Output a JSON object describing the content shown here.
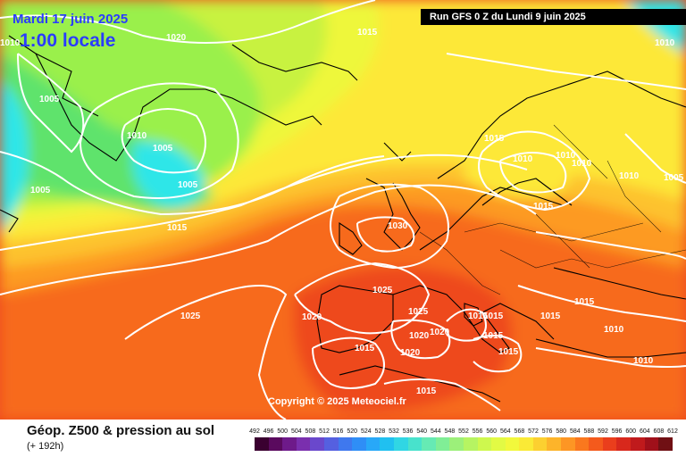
{
  "header": {
    "date": "Mardi 17 juin 2025",
    "local_time": "1:00 locale",
    "run": "Run GFS 0 Z du Lundi 9 juin 2025"
  },
  "footer": {
    "title": "Géop. Z500 & pression au sol",
    "lead": "(+ 192h)",
    "copyright": "Copyright © 2025 Meteociel.fr"
  },
  "isobars": [
    {
      "value": "1020"
    },
    {
      "value": "1015"
    },
    {
      "value": "1010"
    },
    {
      "value": "1010"
    },
    {
      "value": "1005"
    },
    {
      "value": "1010"
    },
    {
      "value": "1005"
    },
    {
      "value": "1005"
    },
    {
      "value": "1005"
    },
    {
      "value": "1015"
    },
    {
      "value": "1015"
    },
    {
      "value": "1010"
    },
    {
      "value": "1010"
    },
    {
      "value": "1010"
    },
    {
      "value": "1015"
    },
    {
      "value": "1005"
    },
    {
      "value": "1010"
    },
    {
      "value": "1030"
    },
    {
      "value": "1025"
    },
    {
      "value": "1025"
    },
    {
      "value": "1020"
    },
    {
      "value": "1025"
    },
    {
      "value": "1015"
    },
    {
      "value": "1020"
    },
    {
      "value": "1020"
    },
    {
      "value": "1015"
    },
    {
      "value": "1015"
    },
    {
      "value": "1015"
    },
    {
      "value": "1015"
    },
    {
      "value": "1020"
    },
    {
      "value": "1015"
    },
    {
      "value": "1015"
    },
    {
      "value": "1015"
    },
    {
      "value": "1010"
    },
    {
      "value": "1010"
    }
  ],
  "legend": {
    "ticks": [
      "492",
      "496",
      "500",
      "504",
      "508",
      "512",
      "516",
      "520",
      "524",
      "528",
      "532",
      "536",
      "540",
      "544",
      "548",
      "552",
      "556",
      "560",
      "564",
      "568",
      "572",
      "576",
      "580",
      "584",
      "588",
      "592",
      "596",
      "600",
      "604",
      "608",
      "612"
    ],
    "colors": [
      "#3a0030",
      "#5a0a5e",
      "#6e1a8a",
      "#7a2fae",
      "#6a48cc",
      "#5560e0",
      "#3f78ee",
      "#2f8ef6",
      "#28a8f8",
      "#20c0f0",
      "#30d6e4",
      "#48e2cc",
      "#66eab4",
      "#80ee96",
      "#9cf07a",
      "#b6f462",
      "#cef84e",
      "#e2fa44",
      "#f2f83c",
      "#faea36",
      "#fcd030",
      "#fdb42a",
      "#fd9624",
      "#fa781e",
      "#f45a1c",
      "#ea3e1c",
      "#d8281c",
      "#c01a1c",
      "#a0101a",
      "#701014"
    ]
  },
  "map": {
    "fields": [
      "#2ee6e8",
      "#46dc9a",
      "#5ee36c",
      "#9af04c",
      "#c8f240",
      "#eef73a",
      "#fde838",
      "#fdc22e",
      "#fd9a24",
      "#f76a1c",
      "#ee4a1c"
    ]
  }
}
